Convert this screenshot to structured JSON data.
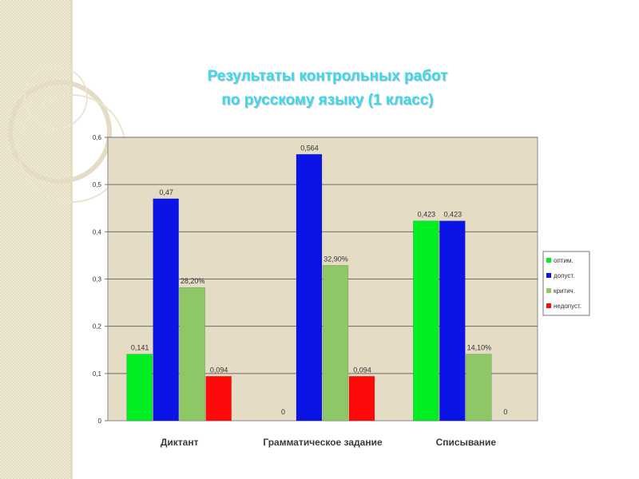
{
  "slide": {
    "title_line1": "Результаты контрольных работ",
    "title_line2": "по русскому языку (1 класс)"
  },
  "chart_data": {
    "type": "bar",
    "categories": [
      "Диктант",
      "Грамматическое задание",
      "Списывание"
    ],
    "series": [
      {
        "name": "оптим.",
        "color": "#00ee22",
        "values": [
          0.141,
          0,
          0.423
        ],
        "labels": [
          "0,141",
          "0",
          "0,423"
        ]
      },
      {
        "name": "допуст.",
        "color": "#0a14e6",
        "values": [
          0.47,
          0.564,
          0.423
        ],
        "labels": [
          "0,47",
          "0,564",
          "0,423"
        ]
      },
      {
        "name": "критич.",
        "color": "#8ec866",
        "values": [
          0.282,
          0.329,
          0.141
        ],
        "labels": [
          "28,20%",
          "32,90%",
          "14,10%"
        ]
      },
      {
        "name": "недопуст.",
        "color": "#ff0a0a",
        "values": [
          0.094,
          0.094,
          0
        ],
        "labels": [
          "0,094",
          "0,094",
          "0"
        ]
      }
    ],
    "ylim": [
      0,
      0.6
    ],
    "yticks": [
      "0",
      "0,1",
      "0,2",
      "0,3",
      "0,4",
      "0,5",
      "0,6"
    ],
    "grid": true,
    "legend_position": "right",
    "plot_background": "#e4dcc4"
  }
}
